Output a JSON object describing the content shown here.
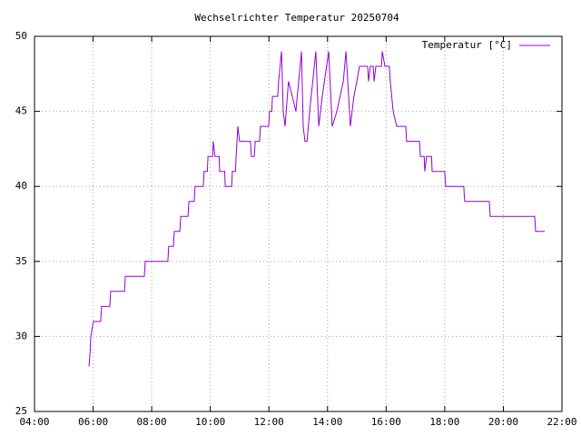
{
  "chart_data": {
    "type": "line",
    "title": "Wechselrichter Temperatur 20250704",
    "x": [
      5.86,
      5.9,
      5.92,
      6.01,
      6.26,
      6.29,
      6.57,
      6.6,
      7.07,
      7.1,
      7.75,
      7.78,
      8.55,
      8.58,
      8.74,
      8.77,
      8.96,
      8.99,
      9.24,
      9.27,
      9.45,
      9.48,
      9.76,
      9.79,
      9.9,
      9.92,
      10.08,
      10.1,
      10.16,
      10.3,
      10.32,
      10.49,
      10.51,
      10.73,
      10.75,
      10.86,
      10.88,
      10.94,
      11.0,
      11.37,
      11.4,
      11.5,
      11.53,
      11.68,
      11.71,
      11.99,
      12.02,
      12.1,
      12.12,
      12.3,
      12.33,
      12.43,
      12.49,
      12.55,
      12.67,
      12.8,
      12.92,
      13.11,
      13.17,
      13.23,
      13.3,
      13.39,
      13.6,
      13.7,
      13.82,
      14.04,
      14.16,
      14.32,
      14.54,
      14.63,
      14.78,
      14.9,
      15.0,
      15.09,
      15.37,
      15.4,
      15.46,
      15.56,
      15.59,
      15.65,
      15.84,
      15.87,
      15.96,
      16.11,
      16.14,
      16.24,
      16.36,
      16.67,
      16.7,
      17.14,
      17.17,
      17.3,
      17.32,
      17.38,
      17.55,
      17.57,
      18.0,
      18.03,
      18.65,
      18.68,
      19.52,
      19.55,
      21.07,
      21.1,
      21.41
    ],
    "series": [
      {
        "name": "Temperatur [°C]",
        "color": "#9400d3",
        "values": [
          28,
          29,
          30,
          31,
          31,
          32,
          32,
          33,
          33,
          34,
          34,
          35,
          35,
          36,
          36,
          37,
          37,
          38,
          38,
          39,
          39,
          40,
          40,
          41,
          41,
          42,
          42,
          43,
          42,
          42,
          41,
          41,
          40,
          40,
          41,
          41,
          42,
          44,
          43,
          43,
          42,
          42,
          43,
          43,
          44,
          44,
          45,
          45,
          46,
          46,
          47,
          49,
          45,
          44,
          47,
          46,
          45,
          49,
          44,
          43,
          43,
          45,
          49,
          44,
          46,
          49,
          44,
          45,
          47,
          49,
          44,
          46,
          47,
          48,
          48,
          47,
          48,
          48,
          47,
          48,
          48,
          49,
          48,
          48,
          47,
          45,
          44,
          44,
          43,
          43,
          42,
          42,
          41,
          42,
          42,
          41,
          41,
          40,
          40,
          39,
          39,
          38,
          38,
          37,
          37
        ]
      }
    ],
    "xlim": [
      4,
      22
    ],
    "xticks": [
      {
        "value": 4,
        "label": "04:00"
      },
      {
        "value": 6,
        "label": "06:00"
      },
      {
        "value": 8,
        "label": "08:00"
      },
      {
        "value": 10,
        "label": "10:00"
      },
      {
        "value": 12,
        "label": "12:00"
      },
      {
        "value": 14,
        "label": "14:00"
      },
      {
        "value": 16,
        "label": "16:00"
      },
      {
        "value": 18,
        "label": "18:00"
      },
      {
        "value": 20,
        "label": "20:00"
      },
      {
        "value": 22,
        "label": "22:00"
      }
    ],
    "ylim": [
      25,
      50
    ],
    "yticks": [
      25,
      30,
      35,
      40,
      45,
      50
    ],
    "grid": true,
    "legend": "top-right"
  }
}
